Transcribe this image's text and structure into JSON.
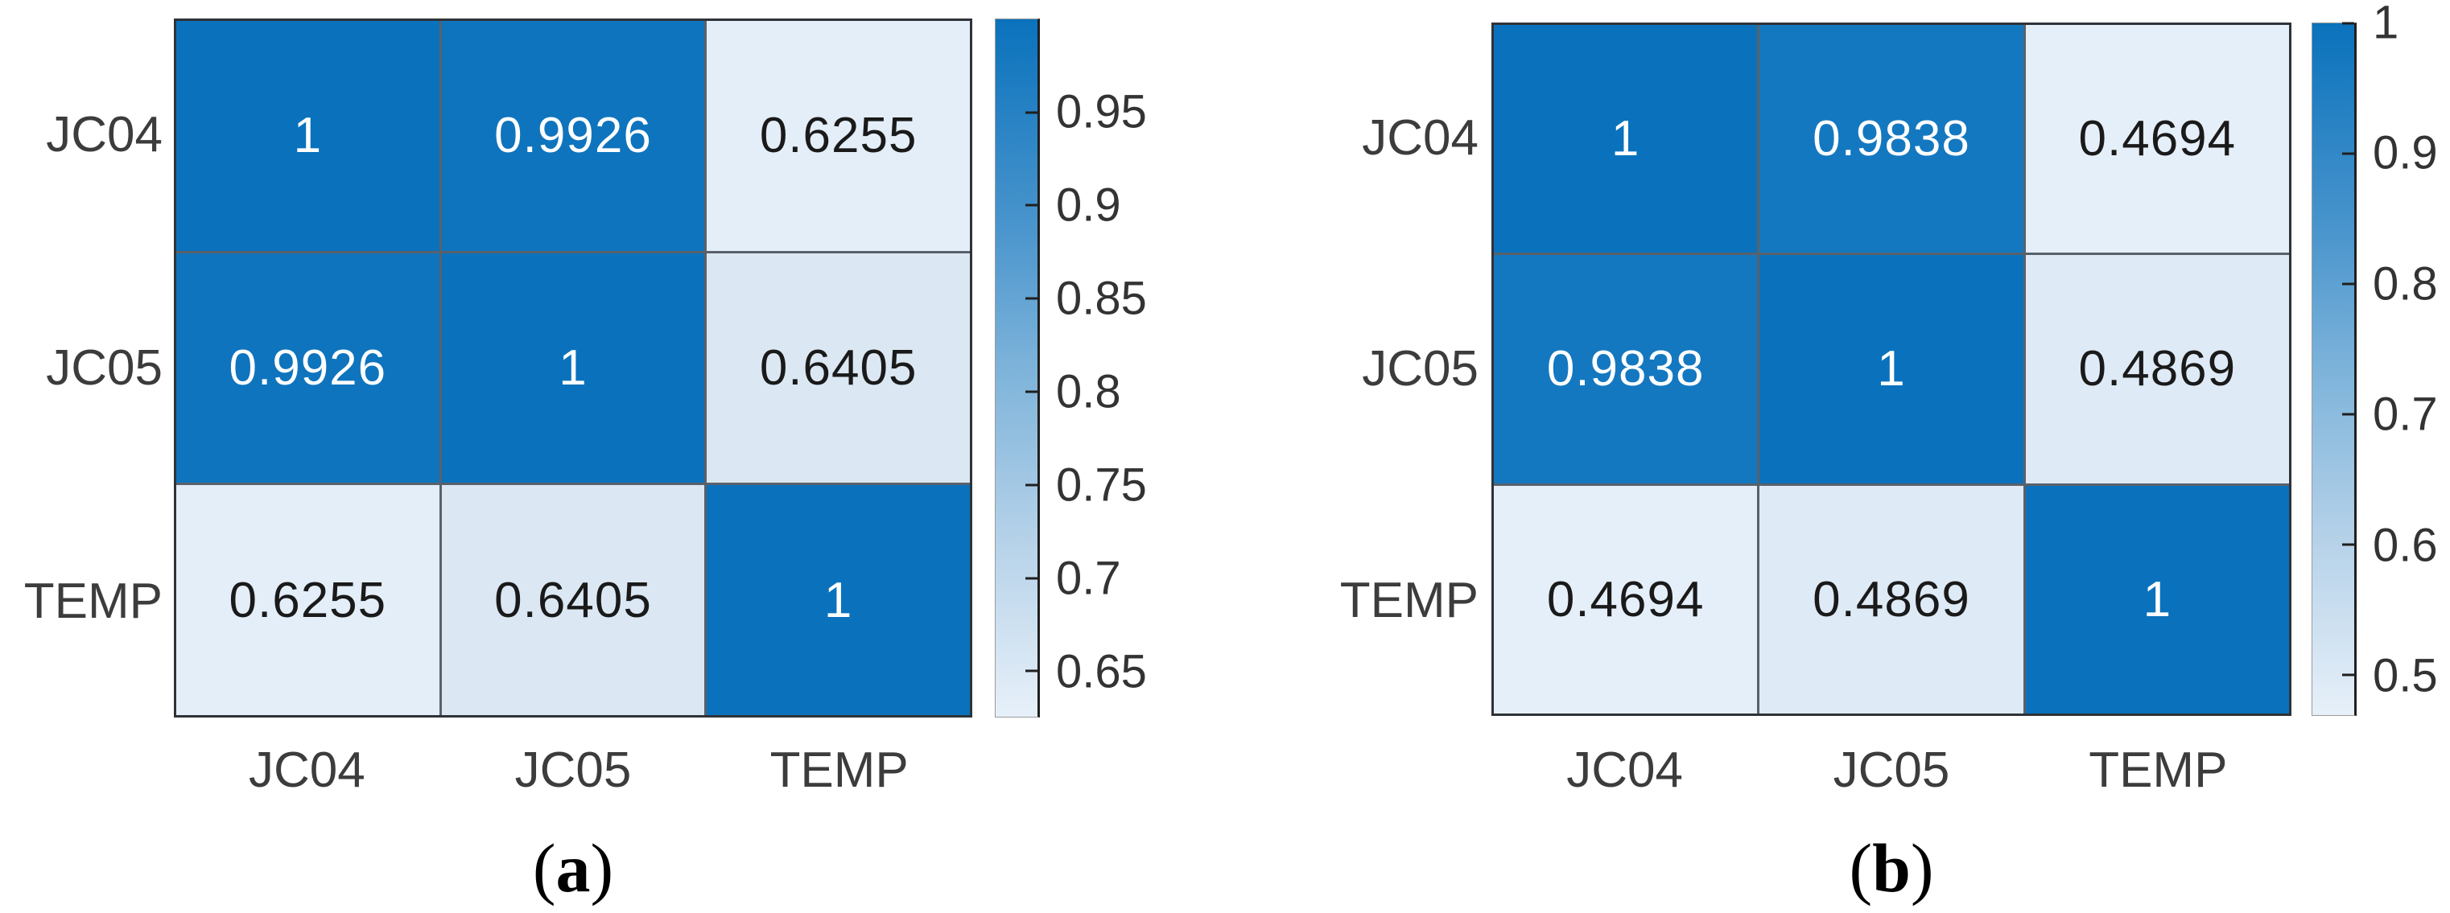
{
  "chart_data": [
    {
      "type": "heatmap",
      "panel_label": "(a)",
      "categories": [
        "JC04",
        "JC05",
        "TEMP"
      ],
      "rows": [
        "JC04",
        "JC05",
        "TEMP"
      ],
      "matrix": [
        [
          1,
          0.9926,
          0.6255
        ],
        [
          0.9926,
          1,
          0.6405
        ],
        [
          0.6255,
          0.6405,
          1
        ]
      ],
      "colorbar_ticks": [
        0.95,
        0.9,
        0.85,
        0.8,
        0.75,
        0.7,
        0.65
      ],
      "color_range": [
        0.6255,
        1
      ],
      "colormap": "light blue to strong blue",
      "legend_position": "right",
      "grid": true
    },
    {
      "type": "heatmap",
      "panel_label": "(b)",
      "categories": [
        "JC04",
        "JC05",
        "TEMP"
      ],
      "rows": [
        "JC04",
        "JC05",
        "TEMP"
      ],
      "matrix": [
        [
          1,
          0.9838,
          0.4694
        ],
        [
          0.9838,
          1,
          0.4869
        ],
        [
          0.4694,
          0.4869,
          1
        ]
      ],
      "colorbar_ticks": [
        1,
        0.9,
        0.8,
        0.7,
        0.6,
        0.5
      ],
      "color_range": [
        0.4694,
        1
      ],
      "colormap": "light blue to strong blue",
      "legend_position": "right",
      "grid": true
    }
  ],
  "colors": {
    "max_blue": "#0a72bc",
    "near_max_blue_a": "#0e74bd",
    "near_max_blue_b": "#1478c0",
    "light_a_low": "#e4eef8",
    "light_a_high": "#dbe8f3",
    "light_b_low": "#e5eff9",
    "light_b_high": "#deeaf5",
    "grid_line": "#59616a",
    "outer_border": "#2e3338",
    "axis_text": "#3c3c3c",
    "tick_text": "#333333",
    "colorbar_gradient_top": "#0a72bc",
    "colorbar_gradient_bottom": "#e7f0f9"
  },
  "panels": [
    {
      "name": "a",
      "caption": {
        "open": "(",
        "letter": "a",
        "close": ")"
      },
      "row_labels": [
        "JC04",
        "JC05",
        "TEMP"
      ],
      "col_labels": [
        "JC04",
        "JC05",
        "TEMP"
      ],
      "cells": [
        {
          "text": "1",
          "bg": "#0a72bc",
          "fg": "#ffffff"
        },
        {
          "text": "0.9926",
          "bg": "#0e74bd",
          "fg": "#ffffff"
        },
        {
          "text": "0.6255",
          "bg": "#e4eef8",
          "fg": "#1a1a1a"
        },
        {
          "text": "0.9926",
          "bg": "#0e74bd",
          "fg": "#ffffff"
        },
        {
          "text": "1",
          "bg": "#0a72bc",
          "fg": "#ffffff"
        },
        {
          "text": "0.6405",
          "bg": "#dbe8f3",
          "fg": "#1a1a1a"
        },
        {
          "text": "0.6255",
          "bg": "#e4eef8",
          "fg": "#1a1a1a"
        },
        {
          "text": "0.6405",
          "bg": "#dbe8f3",
          "fg": "#1a1a1a"
        },
        {
          "text": "1",
          "bg": "#0a72bc",
          "fg": "#ffffff"
        }
      ],
      "colorbar": {
        "ticks": [
          {
            "label": "0.95",
            "top": "13.35%"
          },
          {
            "label": "0.9",
            "top": "26.70%"
          },
          {
            "label": "0.85",
            "top": "40.05%"
          },
          {
            "label": "0.8",
            "top": "53.40%"
          },
          {
            "label": "0.75",
            "top": "66.76%"
          },
          {
            "label": "0.7",
            "top": "80.11%"
          },
          {
            "label": "0.65",
            "top": "93.46%"
          }
        ]
      }
    },
    {
      "name": "b",
      "caption": {
        "open": "(",
        "letter": "b",
        "close": ")"
      },
      "row_labels": [
        "JC04",
        "JC05",
        "TEMP"
      ],
      "col_labels": [
        "JC04",
        "JC05",
        "TEMP"
      ],
      "cells": [
        {
          "text": "1",
          "bg": "#0a72bc",
          "fg": "#ffffff"
        },
        {
          "text": "0.9838",
          "bg": "#1478c0",
          "fg": "#ffffff"
        },
        {
          "text": "0.4694",
          "bg": "#e5eff9",
          "fg": "#1a1a1a"
        },
        {
          "text": "0.9838",
          "bg": "#1478c0",
          "fg": "#ffffff"
        },
        {
          "text": "1",
          "bg": "#0a72bc",
          "fg": "#ffffff"
        },
        {
          "text": "0.4869",
          "bg": "#deeaf5",
          "fg": "#1a1a1a"
        },
        {
          "text": "0.4694",
          "bg": "#e5eff9",
          "fg": "#1a1a1a"
        },
        {
          "text": "0.4869",
          "bg": "#deeaf5",
          "fg": "#1a1a1a"
        },
        {
          "text": "1",
          "bg": "#0a72bc",
          "fg": "#ffffff"
        }
      ],
      "colorbar": {
        "ticks": [
          {
            "label": "1",
            "top": "0%"
          },
          {
            "label": "0.9",
            "top": "18.85%"
          },
          {
            "label": "0.8",
            "top": "37.69%"
          },
          {
            "label": "0.7",
            "top": "56.54%"
          },
          {
            "label": "0.6",
            "top": "75.39%"
          },
          {
            "label": "0.5",
            "top": "94.23%"
          }
        ]
      }
    }
  ]
}
